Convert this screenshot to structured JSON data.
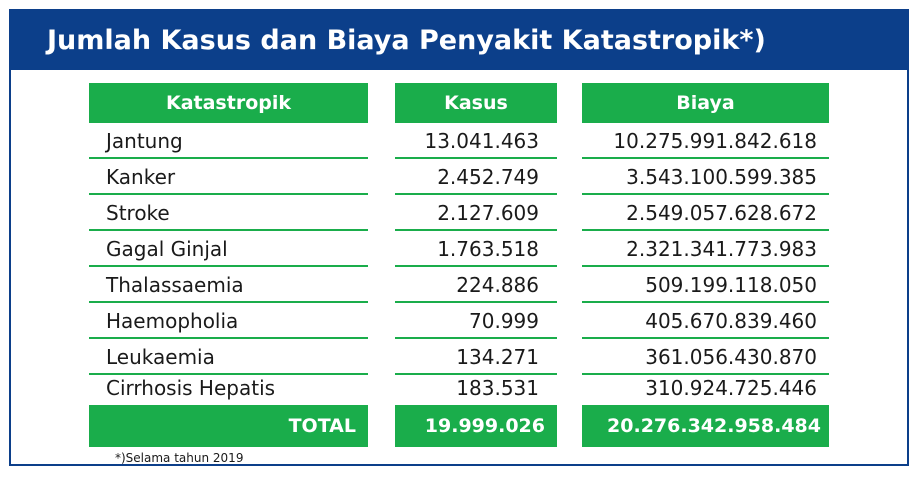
{
  "title": "Jumlah Kasus dan Biaya Penyakit Katastropik*)",
  "columns": {
    "name": "Katastropik",
    "kasus": "Kasus",
    "biaya": "Biaya"
  },
  "rows": [
    {
      "name": "Jantung",
      "kasus": "13.041.463",
      "biaya": "10.275.991.842.618"
    },
    {
      "name": "Kanker",
      "kasus": "2.452.749",
      "biaya": "3.543.100.599.385"
    },
    {
      "name": "Stroke",
      "kasus": "2.127.609",
      "biaya": "2.549.057.628.672"
    },
    {
      "name": "Gagal Ginjal",
      "kasus": "1.763.518",
      "biaya": "2.321.341.773.983"
    },
    {
      "name": "Thalassaemia",
      "kasus": "224.886",
      "biaya": "509.199.118.050"
    },
    {
      "name": "Haemopholia",
      "kasus": "70.999",
      "biaya": "405.670.839.460"
    },
    {
      "name": "Leukaemia",
      "kasus": "134.271",
      "biaya": "361.056.430.870"
    },
    {
      "name": "Cirrhosis Hepatis",
      "kasus": "183.531",
      "biaya": "310.924.725.446"
    }
  ],
  "total": {
    "label": "TOTAL",
    "kasus": "19.999.026",
    "biaya": "20.276.342.958.484"
  },
  "footnote": "*)Selama tahun 2019",
  "colors": {
    "header_blue": "#0c3f8a",
    "accent_green": "#1aad4b"
  }
}
